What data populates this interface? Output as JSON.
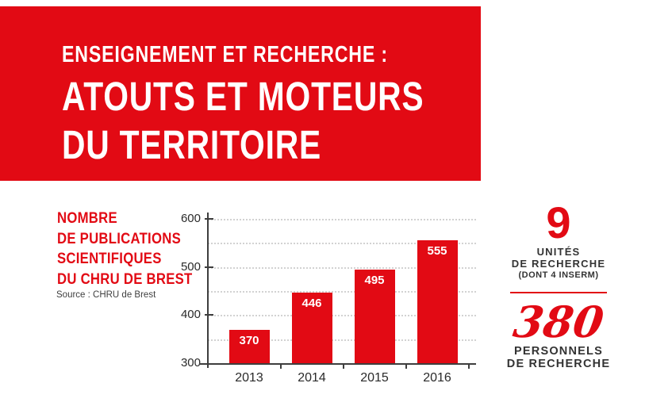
{
  "colors": {
    "accent_red": "#e20a14",
    "text_dark": "#333333",
    "axis_color": "#3e3e3e",
    "grid_color": "#d2d2d2",
    "value_label_color": "#ffffff",
    "background": "#ffffff"
  },
  "header": {
    "kicker": "ENSEIGNEMENT ET RECHERCHE :",
    "title_line1": "ATOUTS ET MOTEURS",
    "title_line2": "DU TERRITOIRE"
  },
  "left_label": {
    "lines": [
      "NOMBRE",
      "DE PUBLICATIONS",
      "SCIENTIFIQUES",
      "DU CHRU DE BREST"
    ],
    "source": "Source : CHRU de Brest"
  },
  "chart_data": {
    "type": "bar",
    "title": "Nombre de publications scientifiques du CHRU de Brest",
    "source": "Source : CHRU de Brest",
    "categories": [
      "2013",
      "2014",
      "2015",
      "2016"
    ],
    "values": [
      370,
      446,
      495,
      555
    ],
    "xlabel": "",
    "ylabel": "",
    "ylim": [
      300,
      600
    ],
    "yticks": [
      300,
      400,
      500,
      600
    ],
    "gridline_values": [
      350,
      400,
      450,
      500,
      550,
      600
    ],
    "grid_style": "dotted",
    "legend": "none",
    "bar_color": "#e20a14",
    "value_labels_inside_bars": true
  },
  "stats": [
    {
      "value": "9",
      "lines": [
        "UNITÉS",
        "DE RECHERCHE"
      ],
      "subline": "(DONT 4 INSERM)"
    },
    {
      "value": "380",
      "lines": [
        "PERSONNELS",
        "DE RECHERCHE"
      ]
    }
  ]
}
